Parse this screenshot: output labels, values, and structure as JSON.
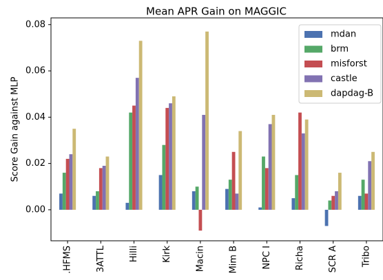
{
  "chart_data": {
    "type": "bar",
    "title": "Mean APR Gain on MAGGIC",
    "ylabel": "Score Gain against MLP",
    "categories": [
      ".HFMS",
      "3ATTL",
      "Hilli",
      "Kirk",
      "Macin",
      "Mim B",
      "NPC I",
      "Richa",
      "SCR A",
      "Tribo"
    ],
    "series": [
      {
        "name": "mdan",
        "color": "#4c72b0",
        "values": [
          0.007,
          0.006,
          0.003,
          0.015,
          0.008,
          0.009,
          0.001,
          0.005,
          -0.007,
          0.006
        ]
      },
      {
        "name": "brm",
        "color": "#55a868",
        "values": [
          0.016,
          0.008,
          0.042,
          0.028,
          0.01,
          0.013,
          0.023,
          0.015,
          0.004,
          0.013
        ]
      },
      {
        "name": "misforst",
        "color": "#c44e52",
        "values": [
          0.022,
          0.018,
          0.045,
          0.044,
          -0.009,
          0.025,
          0.018,
          0.042,
          0.006,
          0.007
        ]
      },
      {
        "name": "castle",
        "color": "#8172b2",
        "values": [
          0.024,
          0.019,
          0.057,
          0.046,
          0.041,
          0.007,
          0.037,
          0.033,
          0.008,
          0.021
        ]
      },
      {
        "name": "dapdag-B",
        "color": "#ccb974",
        "values": [
          0.035,
          0.023,
          0.073,
          0.049,
          0.077,
          0.034,
          0.041,
          0.039,
          0.016,
          0.025
        ]
      }
    ],
    "ylim": [
      -0.0134,
      0.0829
    ],
    "yticks": [
      {
        "value": 0,
        "label": "0.00"
      },
      {
        "value": 0.02,
        "label": "0.02"
      },
      {
        "value": 0.04,
        "label": "0.04"
      },
      {
        "value": 0.06,
        "label": "0.06"
      },
      {
        "value": 0.08,
        "label": "0.08"
      }
    ],
    "legend": "upper right"
  }
}
